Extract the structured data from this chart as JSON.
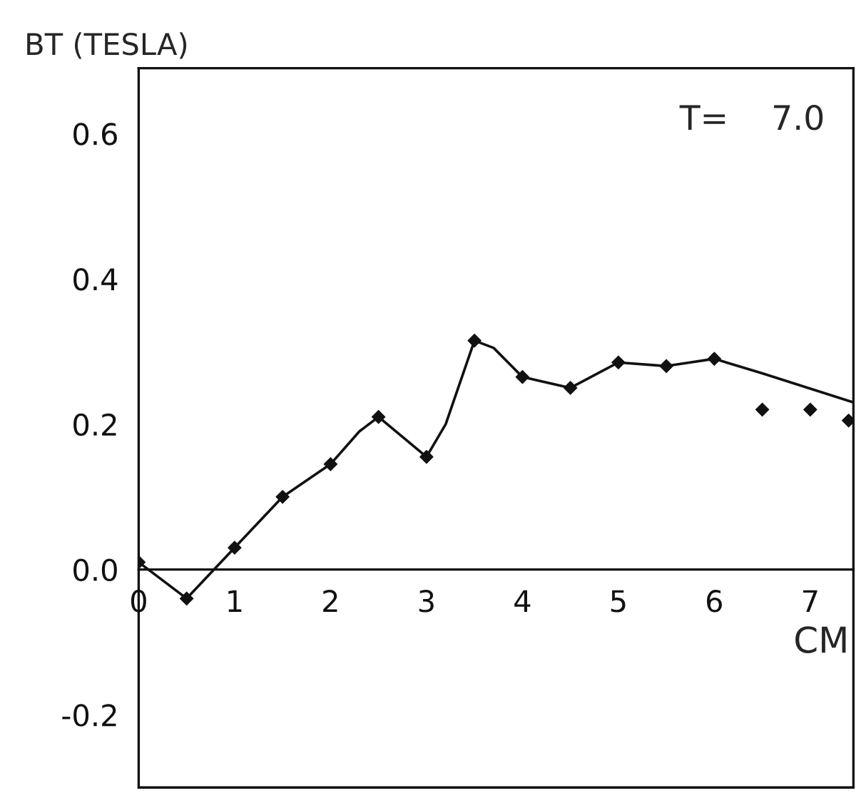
{
  "chart_data": {
    "type": "scatter",
    "ylabel": "BT (TESLA)",
    "xlabel": "CM",
    "annotations": [
      "T=    7.0"
    ],
    "xlim": [
      0,
      7.45
    ],
    "ylim": [
      -0.3,
      0.69
    ],
    "xticks": [
      0,
      1,
      2,
      3,
      4,
      5,
      6,
      7
    ],
    "yticks": [
      {
        "value": -0.2,
        "label": "-0.2"
      },
      {
        "value": 0,
        "label": "0.0"
      },
      {
        "value": 0.2,
        "label": "0.2"
      },
      {
        "value": 0.4,
        "label": "0.4"
      },
      {
        "value": 0.6,
        "label": "0.6"
      }
    ],
    "grid": false,
    "marker": "diamond",
    "series": [
      {
        "color": "#111111",
        "x": [
          0,
          0.5,
          1,
          1.5,
          2,
          2.5,
          3,
          3.5,
          4,
          4.5,
          5,
          5.5,
          6,
          6.5,
          7,
          7.4
        ],
        "values": [
          0.01,
          -0.04,
          0.03,
          0.1,
          0.145,
          0.21,
          0.155,
          0.315,
          0.265,
          0.25,
          0.285,
          0.28,
          0.29,
          0.22,
          0.22,
          0.205
        ]
      },
      {
        "type": "line",
        "color": "#111111",
        "marker": "none",
        "line_style": "solid",
        "x": [
          0,
          0.5,
          1,
          1.5,
          2,
          2.3,
          2.5,
          3,
          3.2,
          3.5,
          3.7,
          4,
          4.5,
          5,
          5.5,
          6,
          6.5,
          7.45
        ],
        "values": [
          0.01,
          -0.04,
          0.03,
          0.1,
          0.145,
          0.19,
          0.21,
          0.155,
          0.2,
          0.315,
          0.305,
          0.265,
          0.25,
          0.285,
          0.28,
          0.29,
          0.27,
          0.23
        ]
      }
    ]
  }
}
